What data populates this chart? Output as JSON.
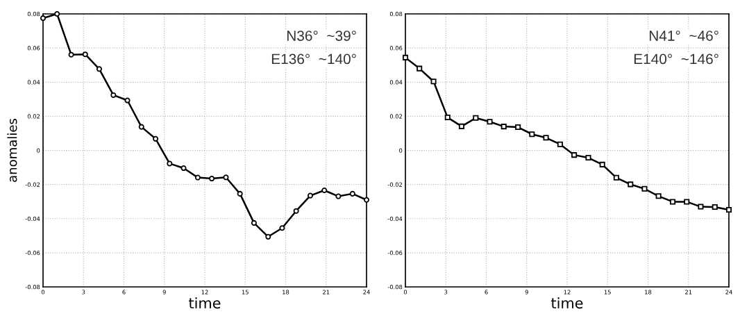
{
  "chart_data": [
    {
      "type": "line",
      "xlabel": "time",
      "ylabel": "anomalies",
      "annotations": [
        "N36°  ~39°",
        "E136°  ~140°"
      ],
      "marker": "circle",
      "line_style": "solid",
      "grid": true,
      "xlim": [
        0,
        24
      ],
      "ylim": [
        -0.08,
        0.08
      ],
      "xticks": [
        0,
        3,
        6,
        9,
        12,
        15,
        18,
        21,
        24
      ],
      "yticks": [
        -0.08,
        -0.06,
        -0.04,
        -0.02,
        0,
        0.02,
        0.04,
        0.06,
        0.08
      ],
      "x": [
        0,
        1.04,
        2.09,
        3.13,
        4.17,
        5.22,
        6.26,
        7.3,
        8.35,
        9.39,
        10.43,
        11.48,
        12.52,
        13.57,
        14.61,
        15.65,
        16.7,
        17.74,
        18.78,
        19.83,
        20.87,
        21.91,
        22.96,
        24
      ],
      "series": [
        {
          "color": "#000000",
          "values": [
            0.0775,
            0.08,
            0.0561,
            0.0563,
            0.0477,
            0.0324,
            0.0293,
            0.0138,
            0.0068,
            -0.0077,
            -0.0104,
            -0.0159,
            -0.0165,
            -0.0158,
            -0.0254,
            -0.0425,
            -0.0506,
            -0.0455,
            -0.0355,
            -0.0265,
            -0.0234,
            -0.0269,
            -0.0254,
            -0.029
          ]
        }
      ]
    },
    {
      "type": "line",
      "xlabel": "time",
      "annotations": [
        "N41°  ~46°",
        "E140°  ~146°"
      ],
      "marker": "square",
      "line_style": "solid",
      "grid": true,
      "xlim": [
        0,
        24
      ],
      "ylim": [
        -0.08,
        0.08
      ],
      "xticks": [
        0,
        3,
        6,
        9,
        12,
        15,
        18,
        21,
        24
      ],
      "yticks": [
        -0.08,
        -0.06,
        -0.04,
        -0.02,
        0,
        0.02,
        0.04,
        0.06,
        0.08
      ],
      "x": [
        0,
        1.04,
        2.09,
        3.13,
        4.17,
        5.22,
        6.26,
        7.3,
        8.35,
        9.39,
        10.43,
        11.48,
        12.52,
        13.57,
        14.61,
        15.65,
        16.7,
        17.74,
        18.78,
        19.83,
        20.87,
        21.91,
        22.96,
        24
      ],
      "series": [
        {
          "color": "#000000",
          "values": [
            0.0544,
            0.048,
            0.0404,
            0.0193,
            0.0141,
            0.019,
            0.0168,
            0.014,
            0.0136,
            0.0095,
            0.0074,
            0.0036,
            -0.0027,
            -0.0043,
            -0.0083,
            -0.016,
            -0.0199,
            -0.0225,
            -0.0268,
            -0.0301,
            -0.0301,
            -0.033,
            -0.0332,
            -0.0348
          ]
        }
      ]
    }
  ]
}
